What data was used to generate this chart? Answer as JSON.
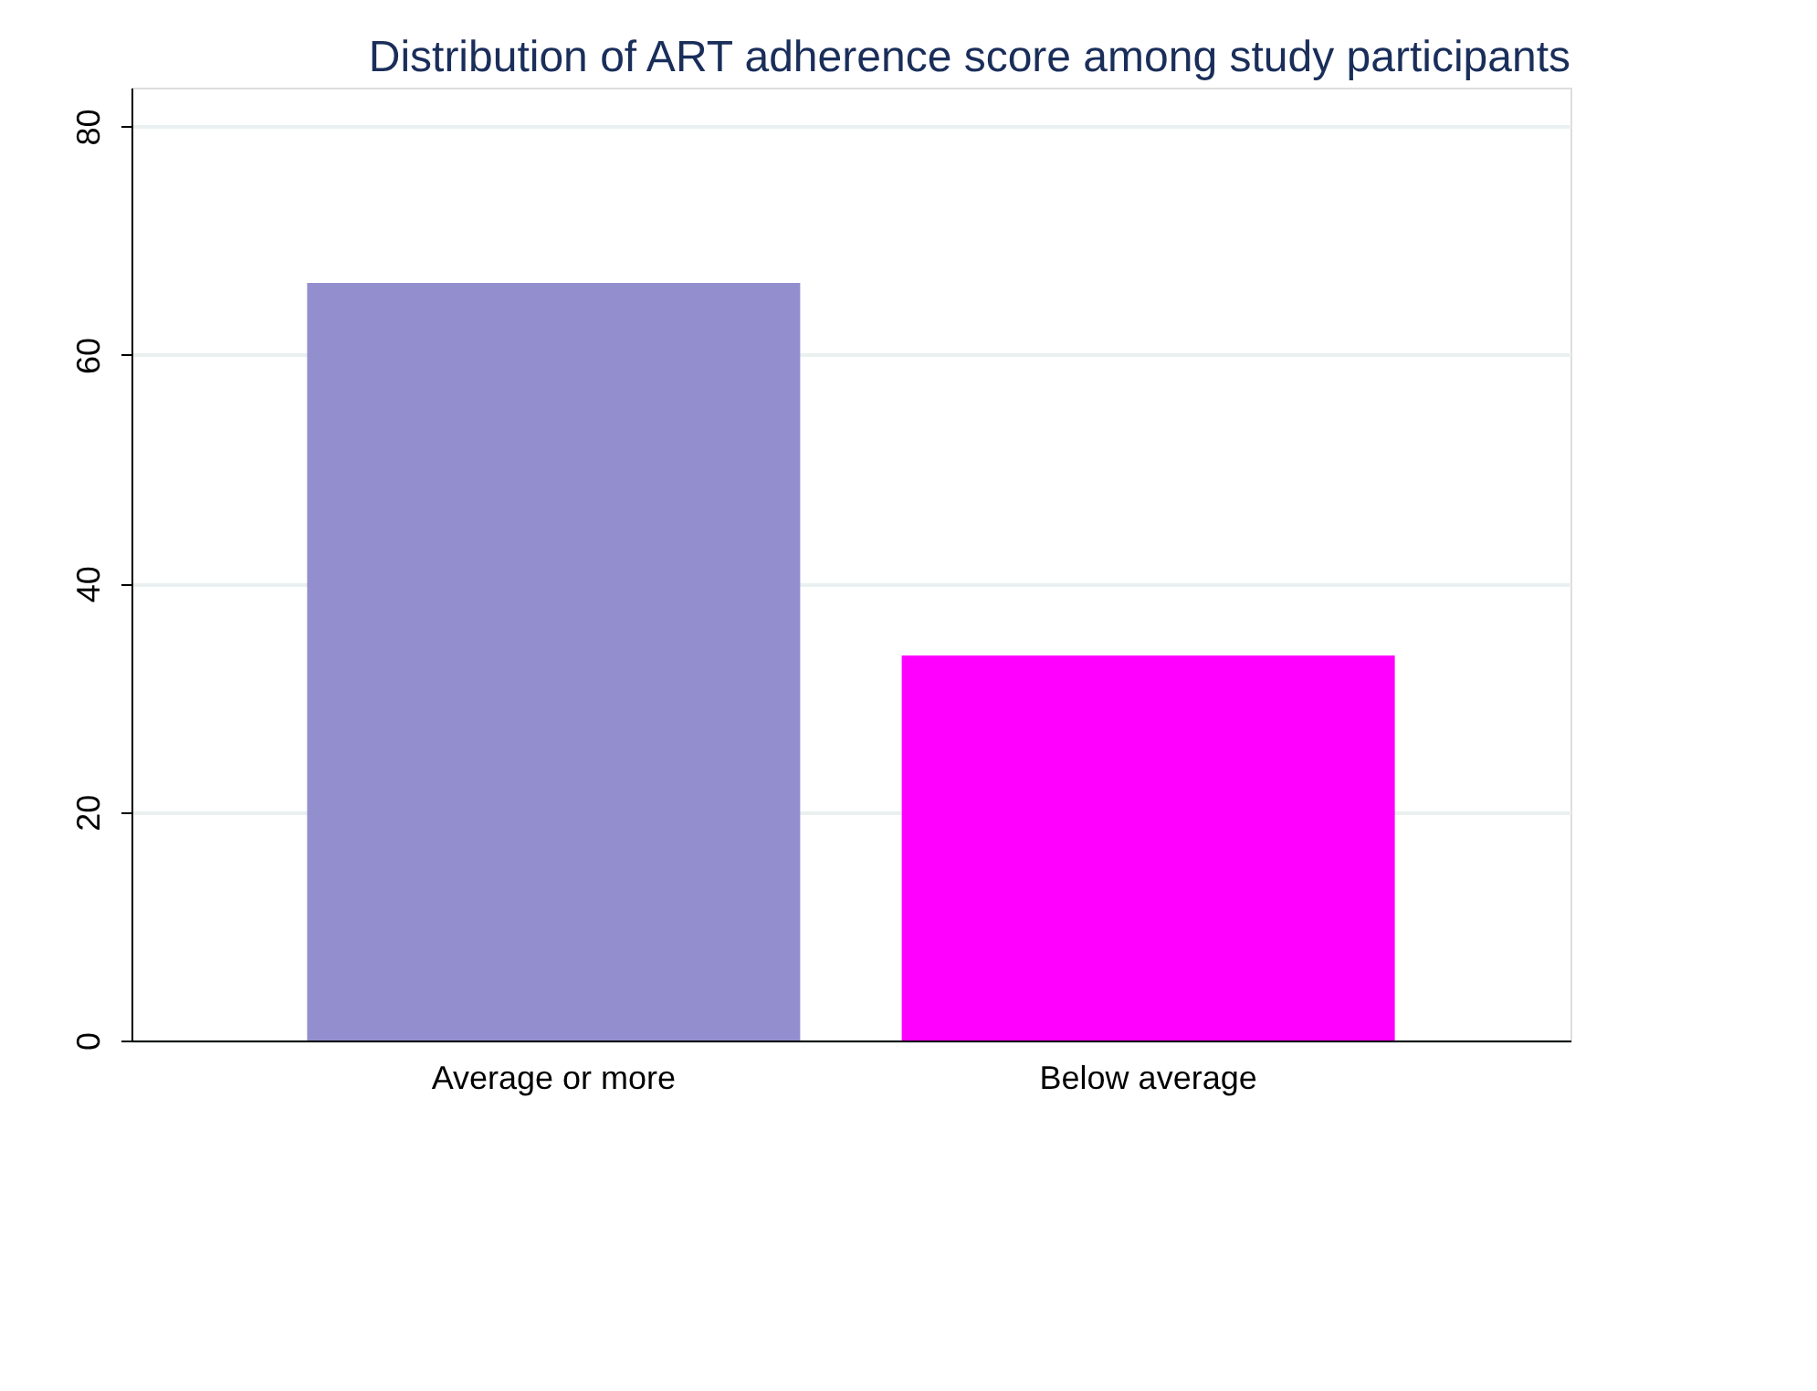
{
  "chart_data": {
    "type": "bar",
    "title": "Distribution of ART adherence score among study participants",
    "categories": [
      "Average or more",
      "Below average"
    ],
    "values": [
      66.3,
      33.7
    ],
    "colors": [
      "#938fcf",
      "#ff00ff"
    ],
    "ylim": [
      0,
      83.4
    ],
    "yticks": [
      0,
      20,
      40,
      60,
      80
    ],
    "grid": "y",
    "legend": false
  }
}
